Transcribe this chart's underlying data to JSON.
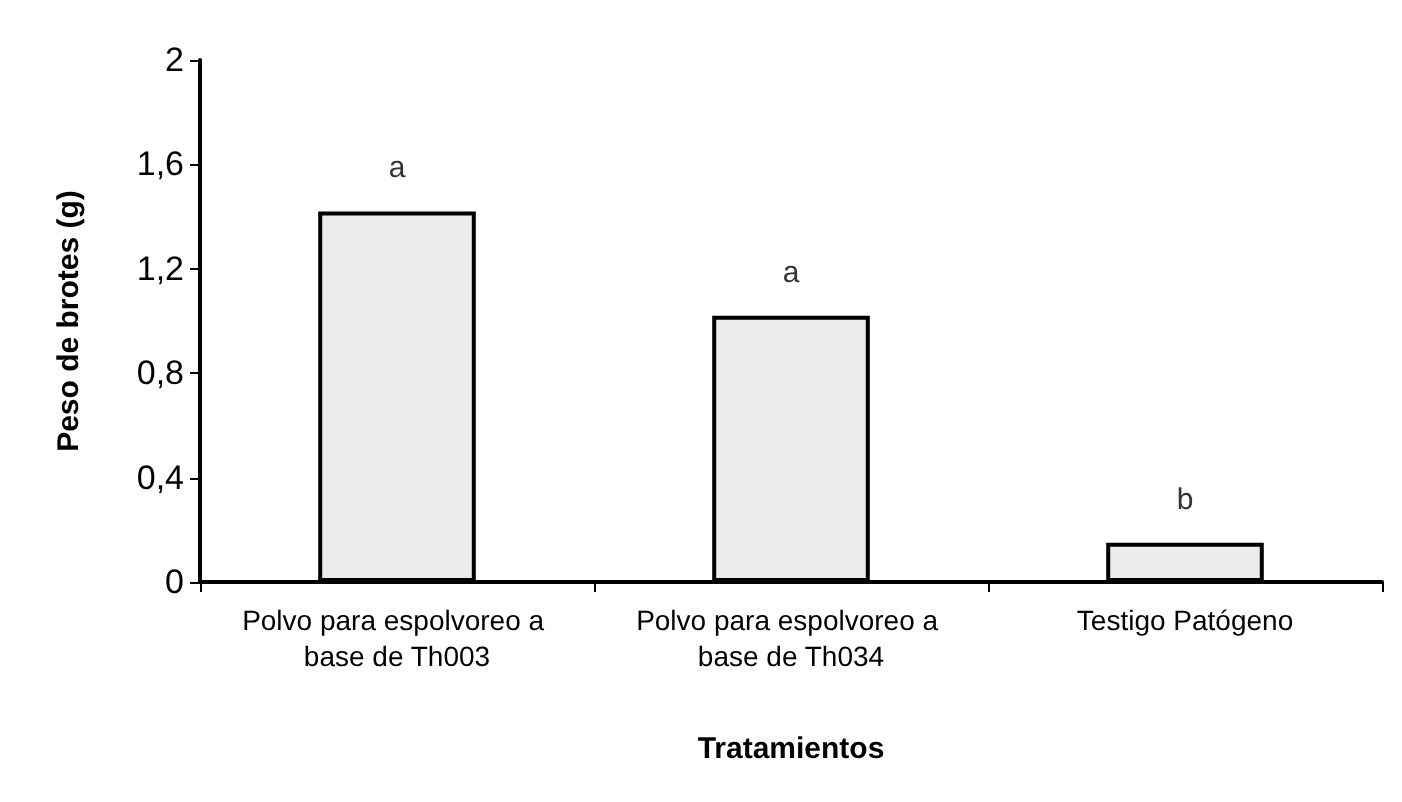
{
  "chart_data": {
    "type": "bar",
    "xlabel": "Tratamientos",
    "ylabel": "Peso de brotes (g)",
    "categories": [
      "Polvo para espolvoreo a base de Th003",
      "Polvo para espolvoreo a base de Th034",
      "Testigo Patógeno"
    ],
    "values": [
      1.42,
      1.02,
      0.15
    ],
    "color": "#ececec",
    "ylim": [
      0,
      2
    ],
    "yticks": [
      0,
      {
        "value": 0.4,
        "label": "0,4"
      },
      {
        "value": 0.8,
        "label": "0,8"
      },
      {
        "value": 1.2,
        "label": "1,2"
      },
      {
        "value": 1.6,
        "label": "1,6"
      },
      2
    ],
    "annotations": [
      {
        "text": "a",
        "x": "Polvo para espolvoreo a base de Th003",
        "y": 1.42
      },
      {
        "text": "a",
        "x": "Polvo para espolvoreo a base de Th034",
        "y": 1.02
      },
      {
        "text": "b",
        "x": "Testigo Patógeno",
        "y": 0.15
      }
    ],
    "grid": false
  }
}
